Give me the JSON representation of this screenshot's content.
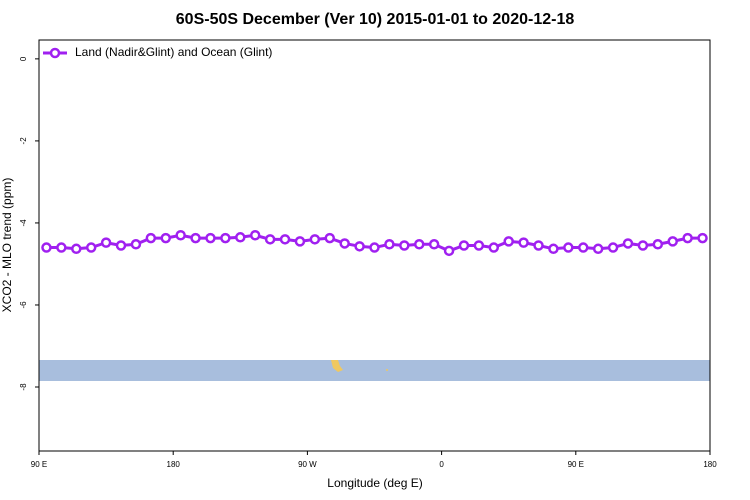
{
  "chart_data": {
    "type": "line",
    "title": "60S-50S December (Ver 10)   2015-01-01 to 2020-12-18",
    "x_label": "Longitude (deg E)",
    "y_label": "XCO2 - MLO trend (ppm)",
    "x": [
      95,
      105,
      115,
      125,
      135,
      145,
      155,
      165,
      175,
      185,
      195,
      205,
      215,
      225,
      235,
      245,
      255,
      265,
      275,
      285,
      295,
      305,
      315,
      325,
      335,
      345,
      355,
      365,
      375,
      385,
      395,
      405,
      415,
      425,
      435,
      445,
      455,
      465,
      475,
      485,
      495,
      505,
      515,
      525,
      535
    ],
    "series": [
      {
        "name": "Land (Nadir&Glint) and Ocean (Glint)",
        "color": "#a020f0",
        "values": [
          -4.6,
          -4.6,
          -4.63,
          -4.6,
          -4.48,
          -4.55,
          -4.52,
          -4.37,
          -4.37,
          -4.3,
          -4.37,
          -4.37,
          -4.37,
          -4.35,
          -4.3,
          -4.4,
          -4.4,
          -4.45,
          -4.4,
          -4.37,
          -4.5,
          -4.57,
          -4.6,
          -4.52,
          -4.55,
          -4.52,
          -4.52,
          -4.68,
          -4.55,
          -4.55,
          -4.6,
          -4.45,
          -4.48,
          -4.55,
          -4.63,
          -4.6,
          -4.6,
          -4.63,
          -4.6,
          -4.5,
          -4.55,
          -4.52,
          -4.45,
          -4.37,
          -4.37
        ]
      }
    ],
    "xlim": [
      90,
      540
    ],
    "xticks": [
      {
        "value": 90,
        "label": "90 E"
      },
      180,
      {
        "value": 270,
        "label": "90 W"
      },
      {
        "value": 360,
        "label": "0"
      },
      {
        "value": 450,
        "label": "90 E"
      },
      {
        "value": 540,
        "label": "180"
      }
    ],
    "ylim": [
      -9.56,
      0.46
    ],
    "yticks": [
      0,
      -2,
      -4,
      -6,
      -8
    ],
    "legend": "top-left"
  }
}
